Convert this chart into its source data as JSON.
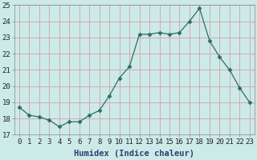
{
  "x": [
    0,
    1,
    2,
    3,
    4,
    5,
    6,
    7,
    8,
    9,
    10,
    11,
    12,
    13,
    14,
    15,
    16,
    17,
    18,
    19,
    20,
    21,
    22,
    23
  ],
  "y": [
    18.7,
    18.2,
    18.1,
    17.9,
    17.5,
    17.8,
    17.8,
    18.2,
    18.5,
    19.4,
    20.5,
    21.2,
    23.2,
    23.2,
    23.3,
    23.2,
    23.3,
    24.0,
    24.8,
    22.8,
    21.8,
    21.0,
    19.9,
    19.0
  ],
  "line_color": "#2d6e63",
  "marker": "D",
  "marker_size": 2.5,
  "bg_color": "#cceae8",
  "grid_color_h": "#d4a0a0",
  "grid_color_v": "#d4a0a0",
  "xlabel": "Humidex (Indice chaleur)",
  "ylim": [
    17,
    25
  ],
  "xlim": [
    -0.5,
    23.5
  ],
  "yticks": [
    17,
    18,
    19,
    20,
    21,
    22,
    23,
    24,
    25
  ],
  "xticks": [
    0,
    1,
    2,
    3,
    4,
    5,
    6,
    7,
    8,
    9,
    10,
    11,
    12,
    13,
    14,
    15,
    16,
    17,
    18,
    19,
    20,
    21,
    22,
    23
  ],
  "xtick_labels": [
    "0",
    "1",
    "2",
    "3",
    "4",
    "5",
    "6",
    "7",
    "8",
    "9",
    "10",
    "11",
    "12",
    "13",
    "14",
    "15",
    "16",
    "17",
    "18",
    "19",
    "20",
    "21",
    "22",
    "23"
  ],
  "xlabel_fontsize": 7.5,
  "tick_fontsize": 6.5,
  "xlabel_color": "#2d3e6e",
  "tick_color": "#222222"
}
